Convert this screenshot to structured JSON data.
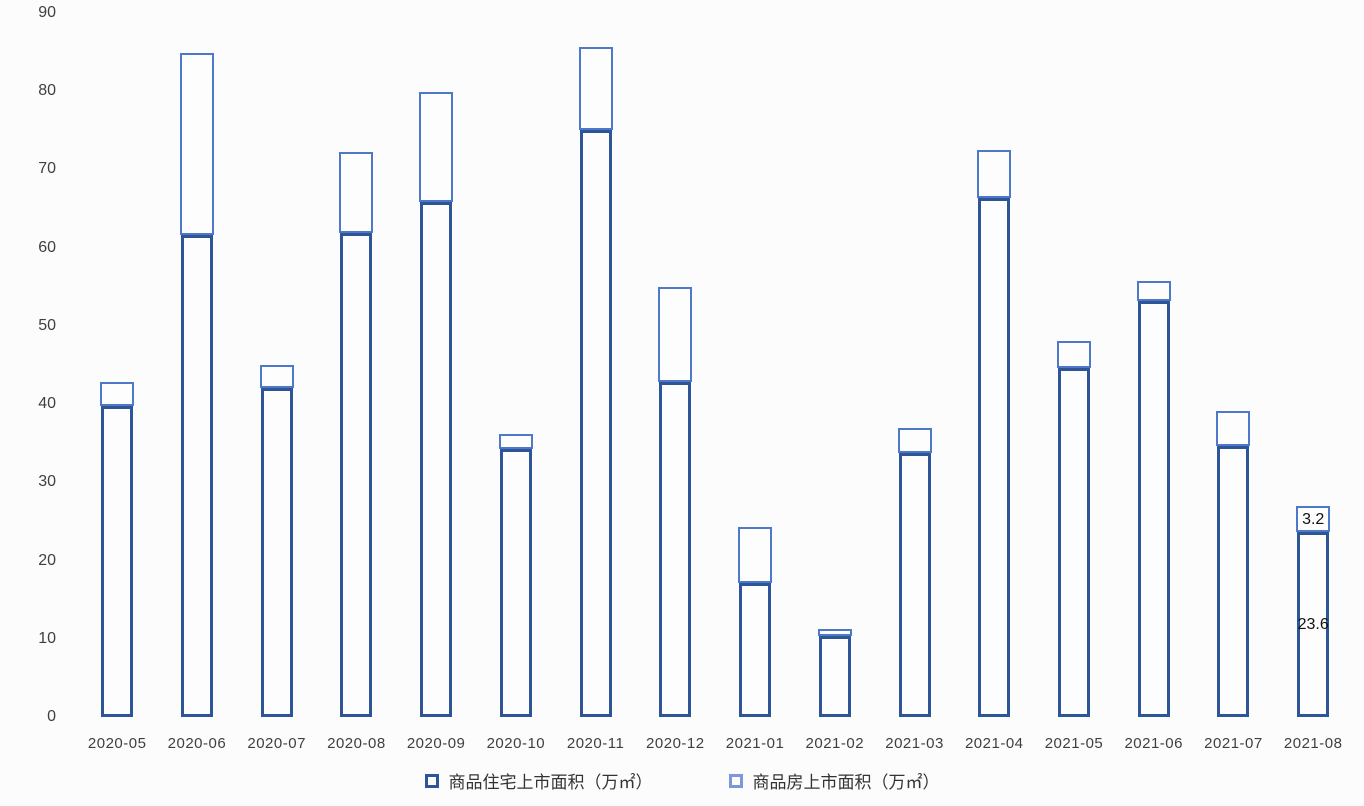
{
  "colors": {
    "background": "#FCFCFC",
    "axis_text": "#3F3F3F",
    "label_text": "#111111"
  },
  "chart_data": {
    "type": "bar",
    "stacked": true,
    "orientation": "vertical",
    "title": "",
    "xlabel": "",
    "ylabel": "",
    "ylim": [
      0,
      90
    ],
    "yticks": [
      0,
      10,
      20,
      30,
      40,
      50,
      60,
      70,
      80,
      90
    ],
    "grid": false,
    "legend_position": "bottom",
    "bar_style": "outlined-white-fill",
    "categories": [
      "2020-05",
      "2020-06",
      "2020-07",
      "2020-08",
      "2020-09",
      "2020-10",
      "2020-11",
      "2020-12",
      "2021-01",
      "2021-02",
      "2021-03",
      "2021-04",
      "2021-05",
      "2021-06",
      "2021-07",
      "2021-08"
    ],
    "series": [
      {
        "name": "商品住宅上市面积（万㎡）",
        "color": "#2E5597",
        "legend_swatch": "#2E5597",
        "values": [
          39.7,
          61.6,
          42.0,
          61.9,
          65.8,
          34.2,
          75.0,
          42.8,
          17.1,
          10.3,
          33.7,
          66.3,
          44.6,
          53.2,
          34.6,
          23.6
        ]
      },
      {
        "name": "商品房上市面积（万㎡）",
        "color": "#4E79C9",
        "legend_swatch": "#7E97DC",
        "values": [
          3.0,
          23.2,
          2.9,
          10.2,
          14.0,
          1.9,
          10.5,
          12.1,
          7.1,
          0.8,
          3.1,
          6.0,
          3.3,
          2.4,
          4.4,
          3.2
        ]
      }
    ],
    "point_labels": [
      {
        "category": "2021-08",
        "series": 1,
        "text": "3.2"
      },
      {
        "category": "2021-08",
        "series": 0,
        "text": "23.6"
      }
    ]
  }
}
